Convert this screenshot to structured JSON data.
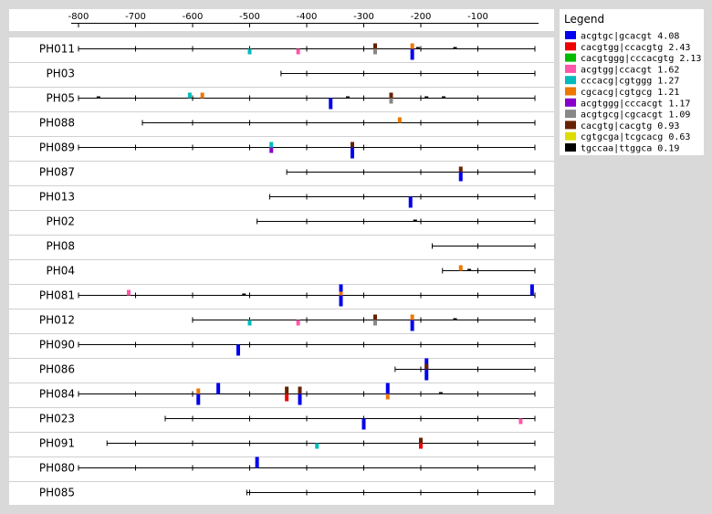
{
  "chart_data": {
    "type": "diagram",
    "x_axis": {
      "ticks": [
        -800,
        -700,
        -600,
        -500,
        -400,
        -300,
        -200,
        -100
      ],
      "range": [
        -800,
        0
      ]
    },
    "legend": {
      "title": "Legend",
      "placement": "right",
      "entries": [
        {
          "label": "acgtgc|gcacgt 4.08",
          "color": "#0000ee"
        },
        {
          "label": "cacgtgg|ccacgtg 2.43",
          "color": "#ee0000"
        },
        {
          "label": "cacgtggg|cccacgtg 2.13",
          "color": "#00bb00"
        },
        {
          "label": "acgtgg|ccacgt 1.62",
          "color": "#ff55aa"
        },
        {
          "label": "cccacg|cgtggg 1.27",
          "color": "#00bbbb"
        },
        {
          "label": "cgcacg|cgtgcg 1.21",
          "color": "#ee7700"
        },
        {
          "label": "acgtggg|cccacgt 1.17",
          "color": "#8800cc"
        },
        {
          "label": "acgtgcg|cgcacgt 1.09",
          "color": "#888888"
        },
        {
          "label": "cacgtg|cacgtg 0.93",
          "color": "#662200"
        },
        {
          "label": "cgtgcga|tcgcacg 0.63",
          "color": "#dddd00"
        },
        {
          "label": "tgccaa|ttggca 0.19",
          "color": "#000000"
        }
      ]
    },
    "rows": [
      {
        "name": "PH011",
        "start": -800,
        "sites": [
          {
            "pos": -500,
            "color": "#00bbbb",
            "h": 6,
            "dir": "down"
          },
          {
            "pos": -415,
            "color": "#ff55aa",
            "h": 6,
            "dir": "down"
          },
          {
            "pos": -280,
            "color": "#662200",
            "h": 6,
            "dir": "up"
          },
          {
            "pos": -280,
            "color": "#888888",
            "h": 6,
            "dir": "down"
          },
          {
            "pos": -215,
            "color": "#ee7700",
            "h": 6,
            "dir": "up"
          },
          {
            "pos": -215,
            "color": "#0000ee",
            "h": 12,
            "dir": "down"
          },
          {
            "pos": -205,
            "color": "#000000",
            "h": 2,
            "dir": "up"
          },
          {
            "pos": -140,
            "color": "#000000",
            "h": 2,
            "dir": "up"
          }
        ]
      },
      {
        "name": "PH03",
        "start": -445,
        "sites": []
      },
      {
        "name": "PH05",
        "start": -800,
        "sites": [
          {
            "pos": -765,
            "color": "#000000",
            "h": 2,
            "dir": "up"
          },
          {
            "pos": -605,
            "color": "#00bbbb",
            "h": 6,
            "dir": "up"
          },
          {
            "pos": -583,
            "color": "#ee7700",
            "h": 6,
            "dir": "up"
          },
          {
            "pos": -358,
            "color": "#0000ee",
            "h": 12,
            "dir": "down"
          },
          {
            "pos": -328,
            "color": "#000000",
            "h": 2,
            "dir": "up"
          },
          {
            "pos": -252,
            "color": "#662200",
            "h": 6,
            "dir": "up"
          },
          {
            "pos": -252,
            "color": "#888888",
            "h": 6,
            "dir": "down"
          },
          {
            "pos": -190,
            "color": "#000000",
            "h": 2,
            "dir": "up"
          },
          {
            "pos": -160,
            "color": "#000000",
            "h": 2,
            "dir": "up"
          }
        ]
      },
      {
        "name": "PH088",
        "start": -688,
        "sites": [
          {
            "pos": -237,
            "color": "#ee7700",
            "h": 6,
            "dir": "up"
          }
        ]
      },
      {
        "name": "PH089",
        "start": -800,
        "sites": [
          {
            "pos": -462,
            "color": "#00bbbb",
            "h": 6,
            "dir": "up"
          },
          {
            "pos": -462,
            "color": "#8800cc",
            "h": 6,
            "dir": "down"
          },
          {
            "pos": -320,
            "color": "#662200",
            "h": 6,
            "dir": "up"
          },
          {
            "pos": -320,
            "color": "#0000ee",
            "h": 12,
            "dir": "down"
          }
        ]
      },
      {
        "name": "PH087",
        "start": -435,
        "sites": [
          {
            "pos": -130,
            "color": "#662200",
            "h": 6,
            "dir": "up"
          },
          {
            "pos": -130,
            "color": "#0000ee",
            "h": 10,
            "dir": "down"
          }
        ]
      },
      {
        "name": "PH013",
        "start": -465,
        "sites": [
          {
            "pos": -218,
            "color": "#0000ee",
            "h": 12,
            "dir": "down"
          }
        ]
      },
      {
        "name": "PH02",
        "start": -487,
        "sites": [
          {
            "pos": -210,
            "color": "#000000",
            "h": 2,
            "dir": "up"
          }
        ]
      },
      {
        "name": "PH08",
        "start": -180,
        "sites": []
      },
      {
        "name": "PH04",
        "start": -162,
        "sites": [
          {
            "pos": -130,
            "color": "#ee7700",
            "h": 6,
            "dir": "up"
          },
          {
            "pos": -115,
            "color": "#000000",
            "h": 2,
            "dir": "up"
          }
        ]
      },
      {
        "name": "PH081",
        "start": -800,
        "sites": [
          {
            "pos": -712,
            "color": "#ff55aa",
            "h": 6,
            "dir": "up"
          },
          {
            "pos": -510,
            "color": "#000000",
            "h": 2,
            "dir": "up"
          },
          {
            "pos": -340,
            "color": "#0000ee",
            "h": 12,
            "dir": "up"
          },
          {
            "pos": -340,
            "color": "#0000ee",
            "h": 12,
            "dir": "down"
          },
          {
            "pos": -340,
            "color": "#ee7700",
            "h": 4,
            "dir": "up"
          },
          {
            "pos": -5,
            "color": "#0000ee",
            "h": 12,
            "dir": "up"
          }
        ]
      },
      {
        "name": "PH012",
        "start": -600,
        "sites": [
          {
            "pos": -500,
            "color": "#00bbbb",
            "h": 6,
            "dir": "down"
          },
          {
            "pos": -415,
            "color": "#ff55aa",
            "h": 6,
            "dir": "down"
          },
          {
            "pos": -280,
            "color": "#662200",
            "h": 6,
            "dir": "up"
          },
          {
            "pos": -280,
            "color": "#888888",
            "h": 6,
            "dir": "down"
          },
          {
            "pos": -215,
            "color": "#ee7700",
            "h": 6,
            "dir": "up"
          },
          {
            "pos": -215,
            "color": "#0000ee",
            "h": 12,
            "dir": "down"
          },
          {
            "pos": -140,
            "color": "#000000",
            "h": 2,
            "dir": "up"
          }
        ]
      },
      {
        "name": "PH090",
        "start": -800,
        "sites": [
          {
            "pos": -520,
            "color": "#0000ee",
            "h": 12,
            "dir": "down"
          }
        ]
      },
      {
        "name": "PH086",
        "start": -245,
        "sites": [
          {
            "pos": -190,
            "color": "#0000ee",
            "h": 12,
            "dir": "up"
          },
          {
            "pos": -190,
            "color": "#0000ee",
            "h": 12,
            "dir": "down"
          },
          {
            "pos": -190,
            "color": "#662200",
            "h": 6,
            "dir": "up"
          }
        ]
      },
      {
        "name": "PH084",
        "start": -800,
        "sites": [
          {
            "pos": -590,
            "color": "#ee7700",
            "h": 6,
            "dir": "up"
          },
          {
            "pos": -590,
            "color": "#0000ee",
            "h": 12,
            "dir": "down"
          },
          {
            "pos": -555,
            "color": "#0000ee",
            "h": 12,
            "dir": "up"
          },
          {
            "pos": -435,
            "color": "#662200",
            "h": 8,
            "dir": "up"
          },
          {
            "pos": -435,
            "color": "#ee0000",
            "h": 8,
            "dir": "down"
          },
          {
            "pos": -412,
            "color": "#662200",
            "h": 8,
            "dir": "up"
          },
          {
            "pos": -412,
            "color": "#0000ee",
            "h": 12,
            "dir": "down"
          },
          {
            "pos": -258,
            "color": "#0000ee",
            "h": 12,
            "dir": "up"
          },
          {
            "pos": -258,
            "color": "#ee7700",
            "h": 6,
            "dir": "down"
          },
          {
            "pos": -165,
            "color": "#000000",
            "h": 2,
            "dir": "up"
          }
        ]
      },
      {
        "name": "PH023",
        "start": -648,
        "sites": [
          {
            "pos": -300,
            "color": "#0000ee",
            "h": 12,
            "dir": "down"
          },
          {
            "pos": -25,
            "color": "#ff55aa",
            "h": 6,
            "dir": "down"
          }
        ]
      },
      {
        "name": "PH091",
        "start": -750,
        "sites": [
          {
            "pos": -382,
            "color": "#00bbbb",
            "h": 6,
            "dir": "down"
          },
          {
            "pos": -200,
            "color": "#662200",
            "h": 6,
            "dir": "up"
          },
          {
            "pos": -200,
            "color": "#ee0000",
            "h": 6,
            "dir": "down"
          }
        ]
      },
      {
        "name": "PH080",
        "start": -800,
        "sites": [
          {
            "pos": -487,
            "color": "#0000ee",
            "h": 12,
            "dir": "up"
          }
        ]
      },
      {
        "name": "PH085",
        "start": -505,
        "sites": []
      }
    ]
  }
}
